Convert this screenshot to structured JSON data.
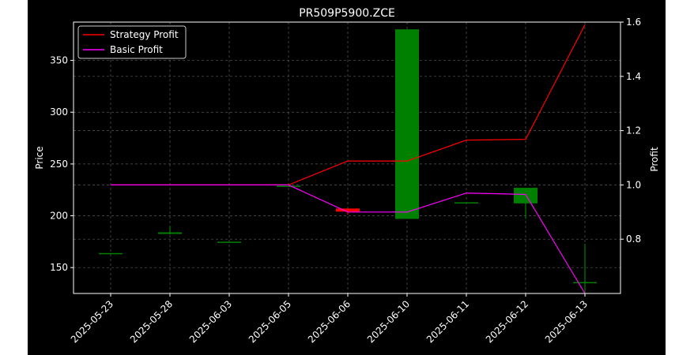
{
  "chart_data": {
    "type": "candlestick+line",
    "title": "PR509P5900.ZCE",
    "ylabel_left": "Price",
    "ylabel_right": "Profit",
    "xlabel": "",
    "grid": true,
    "legend_placement": "top-left",
    "categories": [
      "2025-05-23",
      "2025-05-28",
      "2025-06-03",
      "2025-06-05",
      "2025-06-06",
      "2025-06-10",
      "2025-06-11",
      "2025-06-12",
      "2025-06-13"
    ],
    "y_left": {
      "range": [
        125,
        387
      ],
      "ticks": [
        150,
        200,
        250,
        300,
        350
      ]
    },
    "y_right": {
      "range": [
        0.6,
        1.6
      ],
      "ticks": [
        0.8,
        1.0,
        1.2,
        1.4,
        1.6
      ]
    },
    "candles": [
      {
        "date": "2025-05-23",
        "open": 164,
        "close": 164,
        "high": 164,
        "low": 164
      },
      {
        "date": "2025-05-28",
        "open": 182.5,
        "close": 184,
        "high": 190,
        "low": 182
      },
      {
        "date": "2025-06-03",
        "open": 175,
        "close": 175,
        "high": 175,
        "low": 175
      },
      {
        "date": "2025-06-05",
        "open": 229,
        "close": 229,
        "high": 229,
        "low": 229
      },
      {
        "date": "2025-06-06",
        "open": 207,
        "close": 204,
        "high": 207,
        "low": 201
      },
      {
        "date": "2025-06-10",
        "open": 197,
        "close": 380,
        "high": 380,
        "low": 197
      },
      {
        "date": "2025-06-11",
        "open": 213,
        "close": 213,
        "high": 213,
        "low": 213
      },
      {
        "date": "2025-06-12",
        "open": 212,
        "close": 227,
        "high": 227,
        "low": 197
      },
      {
        "date": "2025-06-13",
        "open": 135,
        "close": 136,
        "high": 173,
        "low": 126
      }
    ],
    "series": [
      {
        "name": "Strategy Profit",
        "color": "#ff0000",
        "values": [
          1.0,
          1.0,
          1.0,
          1.0,
          1.088,
          1.088,
          1.165,
          1.168,
          1.59
        ]
      },
      {
        "name": "Basic Profit",
        "color": "#ff00ff",
        "values": [
          1.0,
          1.0,
          1.0,
          1.0,
          0.9,
          0.9,
          0.97,
          0.965,
          0.6
        ]
      }
    ],
    "colors": {
      "up": "#008000",
      "down": "#ff0000",
      "background": "#000000",
      "foreground": "#ffffff",
      "grid": "#808080"
    }
  }
}
